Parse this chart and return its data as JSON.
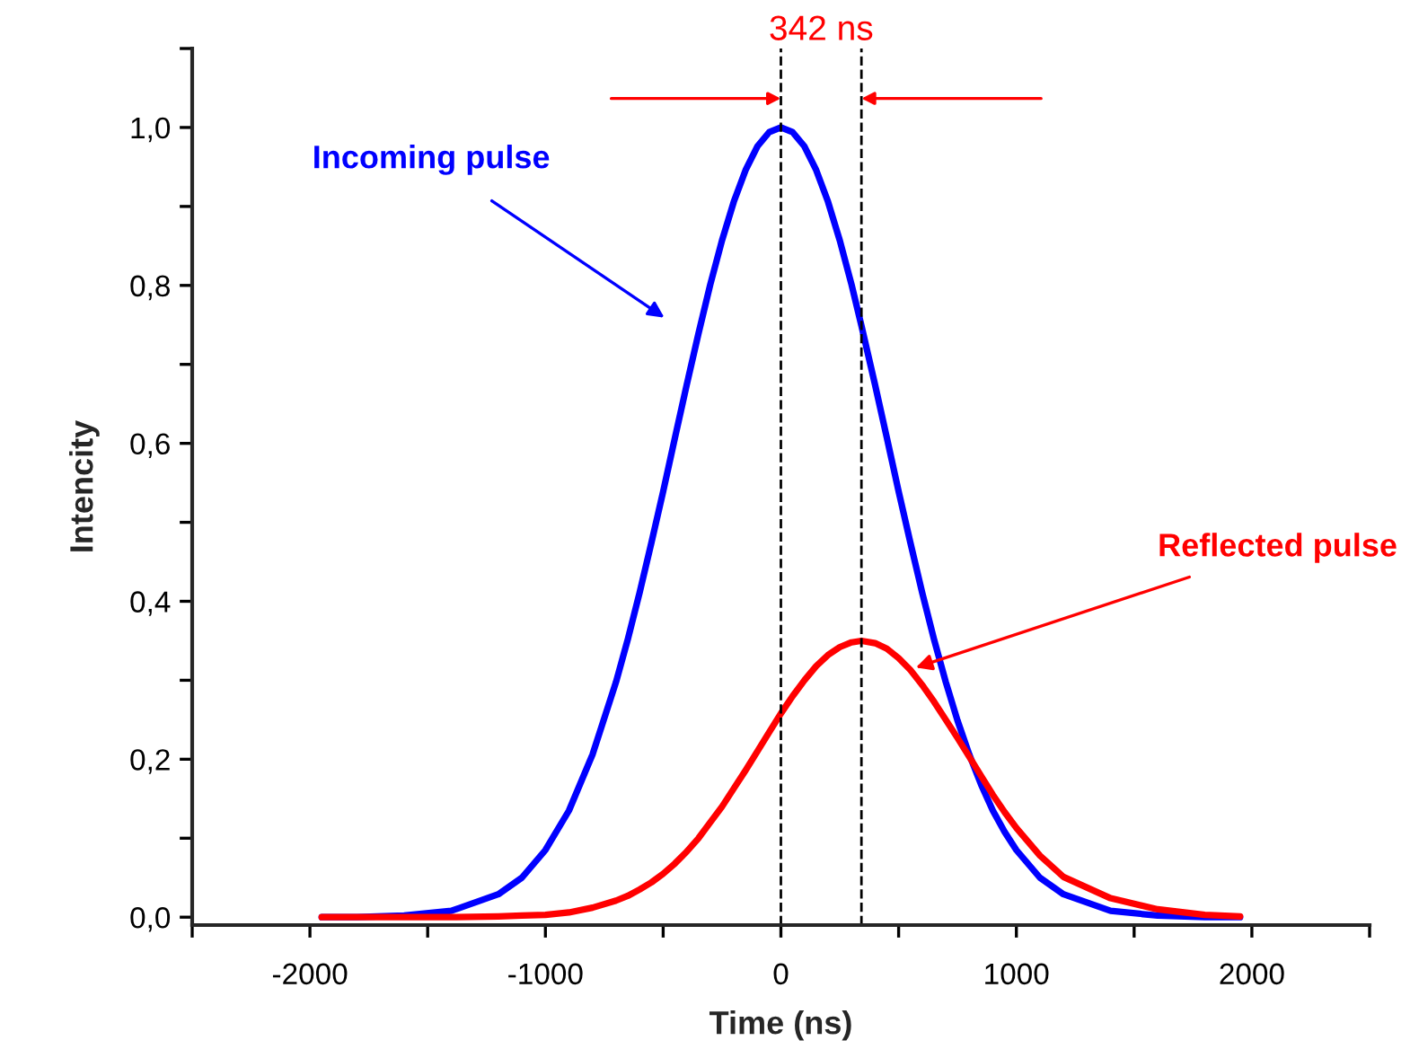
{
  "chart_data": {
    "type": "line",
    "xlabel": "Time (ns)",
    "ylabel": "Intencity",
    "x": [
      -1950,
      -1800,
      -1600,
      -1400,
      -1200,
      -1100,
      -1000,
      -900,
      -800,
      -700,
      -650,
      -600,
      -550,
      -500,
      -450,
      -400,
      -350,
      -300,
      -250,
      -200,
      -150,
      -100,
      -50,
      0,
      50,
      100,
      150,
      200,
      250,
      300,
      342,
      400,
      450,
      500,
      550,
      600,
      650,
      700,
      750,
      800,
      850,
      900,
      950,
      1000,
      1100,
      1200,
      1400,
      1600,
      1800,
      1950
    ],
    "series": [
      {
        "color": "#0000ff",
        "values": [
          0,
          0,
          0.002,
          0.008,
          0.029,
          0.05,
          0.085,
          0.135,
          0.206,
          0.298,
          0.352,
          0.411,
          0.474,
          0.539,
          0.607,
          0.674,
          0.739,
          0.801,
          0.857,
          0.906,
          0.946,
          0.976,
          0.994,
          1.0,
          0.994,
          0.976,
          0.946,
          0.906,
          0.857,
          0.801,
          0.749,
          0.674,
          0.607,
          0.539,
          0.474,
          0.411,
          0.352,
          0.298,
          0.249,
          0.206,
          0.168,
          0.135,
          0.108,
          0.085,
          0.05,
          0.029,
          0.008,
          0.002,
          0,
          0
        ]
      },
      {
        "color": "#ff0000",
        "values": [
          0,
          0,
          0,
          0,
          0.001,
          0.002,
          0.003,
          0.006,
          0.012,
          0.021,
          0.027,
          0.035,
          0.044,
          0.055,
          0.068,
          0.083,
          0.1,
          0.12,
          0.14,
          0.163,
          0.186,
          0.21,
          0.234,
          0.258,
          0.28,
          0.3,
          0.318,
          0.332,
          0.342,
          0.348,
          0.35,
          0.347,
          0.34,
          0.328,
          0.313,
          0.294,
          0.273,
          0.25,
          0.227,
          0.203,
          0.179,
          0.155,
          0.133,
          0.113,
          0.078,
          0.051,
          0.024,
          0.01,
          0.003,
          0.001
        ]
      }
    ],
    "xlim": [
      -2500,
      2500
    ],
    "ylim": [
      -0.01,
      1.1
    ],
    "xticks": [
      {
        "value": -2500,
        "label": null
      },
      -2000,
      {
        "value": -1500,
        "label": null
      },
      -1000,
      {
        "value": -500,
        "label": null
      },
      0,
      {
        "value": 500,
        "label": null
      },
      1000,
      {
        "value": 1500,
        "label": null
      },
      2000,
      {
        "value": 2500,
        "label": null
      }
    ],
    "yticks": [
      {
        "value": 0,
        "label": "0,0"
      },
      {
        "value": 0.1,
        "label": null
      },
      {
        "value": 0.2,
        "label": "0,2"
      },
      {
        "value": 0.3,
        "label": null
      },
      {
        "value": 0.4,
        "label": "0,4"
      },
      {
        "value": 0.5,
        "label": null
      },
      {
        "value": 0.6,
        "label": "0,6"
      },
      {
        "value": 0.7,
        "label": null
      },
      {
        "value": 0.8,
        "label": "0,8"
      },
      {
        "value": 0.9,
        "label": null
      },
      {
        "value": 1.0,
        "label": "1,0"
      },
      {
        "value": 1.1,
        "label": null
      }
    ],
    "ref_lines": [
      {
        "axis": "x",
        "value": 0,
        "color": "#000000",
        "line_style": "dashed"
      },
      {
        "axis": "x",
        "value": 342,
        "color": "#000000",
        "line_style": "dashed"
      }
    ],
    "annotations": [
      "Incoming pulse",
      {
        "text": "Reflected pulse",
        "x": 573,
        "y": 0.316
      },
      "342 ns"
    ],
    "grid": false,
    "marker": "none",
    "line_style": "solid"
  }
}
